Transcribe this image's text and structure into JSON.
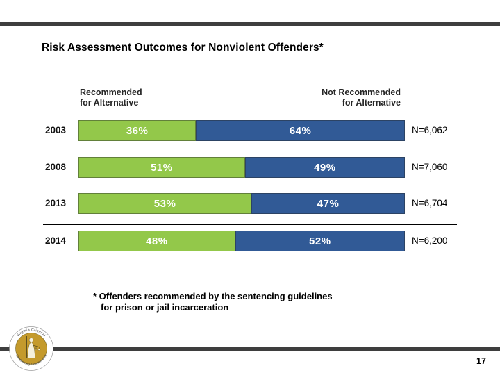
{
  "slide": {
    "title": "Risk Assessment Outcomes for Nonviolent Offenders*",
    "page_number": "17",
    "footnote": {
      "line1": "* Offenders recommended by the sentencing guidelines",
      "line2": "for prison or jail incarceration"
    },
    "seal": {
      "text_top": "Virginia Criminal",
      "text_bottom": "Sentencing Commission"
    },
    "colors": {
      "recommended_green": "#93C84A",
      "not_recommended_blue": "#315A96",
      "rule_gray": "#3E3E3E",
      "seal_gold": "#C49A2C"
    }
  },
  "chart_data": {
    "type": "bar",
    "subtype": "horizontal_stacked_100_percent",
    "title": "Risk Assessment Outcomes for Nonviolent Offenders*",
    "categories": [
      "2003",
      "2008",
      "2013",
      "2014"
    ],
    "series": [
      {
        "name": "Recommended for Alternative",
        "color": "#93C84A",
        "values": [
          36,
          51,
          53,
          48
        ]
      },
      {
        "name": "Not Recommended for Alternative",
        "color": "#315A96",
        "values": [
          64,
          49,
          47,
          52
        ]
      }
    ],
    "value_suffix": "%",
    "n_labels": [
      "N=6,062",
      "N=7,060",
      "N=6,704",
      "N=6,200"
    ],
    "column_header_left": {
      "line1": "Recommended",
      "line2": "for Alternative"
    },
    "column_header_right": {
      "line1": "Not Recommended",
      "line2": "for Alternative"
    },
    "xlim": [
      0,
      100
    ],
    "grid": false,
    "legend_position": "column-headers-above-bars",
    "separator_between_rows": [
      "2013",
      "2014"
    ]
  }
}
